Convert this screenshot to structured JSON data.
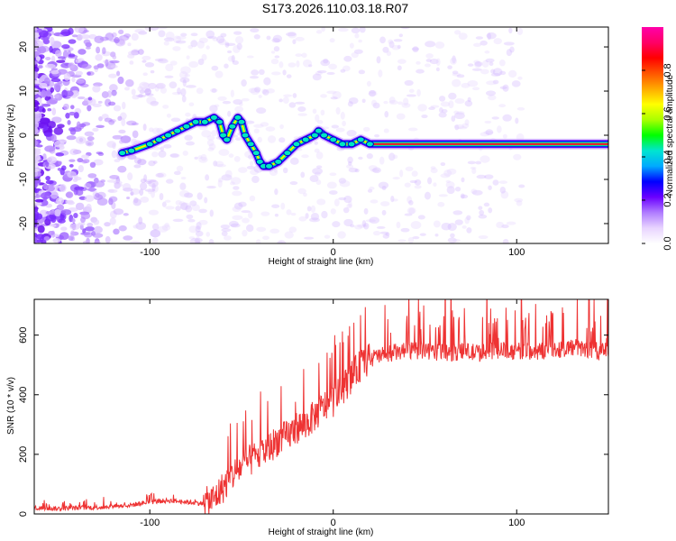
{
  "title": "S173.2026.110.03.18.R07",
  "chart_data": [
    {
      "type": "heatmap",
      "name": "spectrogram",
      "xlabel": "Height of straight line (km)",
      "ylabel": "Frequency (Hz)",
      "xlim": [
        -163,
        150
      ],
      "ylim": [
        -24.5,
        24.5
      ],
      "x_ticks": [
        -100,
        0,
        100
      ],
      "x_tick_labels": [
        "-100",
        "0",
        "100"
      ],
      "y_ticks": [
        -20,
        -10,
        0,
        10,
        20
      ],
      "y_tick_labels": [
        "-20",
        "-10",
        "0",
        "10",
        "20"
      ],
      "colorbar": {
        "label": "Normalized spectral amplitude",
        "range": [
          0,
          1
        ],
        "ticks": [
          0.0,
          0.2,
          0.4,
          0.6,
          0.8
        ],
        "tick_labels": [
          "0.0",
          "0.2",
          "0.4",
          "0.6",
          "0.8"
        ],
        "colors": [
          "#ffffff",
          "#e8d4ff",
          "#b07cff",
          "#6a00ff",
          "#0000ff",
          "#00aaff",
          "#00e5d0",
          "#00ff00",
          "#aaff00",
          "#ffff00",
          "#ffaa00",
          "#ff5500",
          "#ff0000",
          "#ff0066",
          "#ff00aa"
        ]
      },
      "ridge_x": [
        -115,
        -110,
        -100,
        -95,
        -90,
        -85,
        -80,
        -75,
        -70,
        -65,
        -62,
        -60,
        -58,
        -55,
        -52,
        -50,
        -48,
        -45,
        -42,
        -40,
        -38,
        -35,
        -30,
        -25,
        -20,
        -15,
        -10,
        -8,
        -5,
        0,
        5,
        10,
        15,
        20,
        40,
        60,
        80,
        100,
        120,
        150
      ],
      "ridge_y": [
        -4,
        -3.5,
        -2,
        -1,
        0,
        1,
        2,
        3,
        3,
        4,
        3,
        0,
        -1,
        2,
        4,
        3,
        0,
        -2,
        -4,
        -6,
        -7,
        -7,
        -6,
        -4,
        -2,
        -1,
        0,
        1,
        0,
        -1,
        -2,
        -2,
        -1,
        -2,
        -2,
        -2,
        -2,
        -2,
        -2,
        -2
      ]
    },
    {
      "type": "line",
      "name": "snr",
      "xlabel": "Height of straight line (km)",
      "ylabel": "SNR (10 * v/v)",
      "xlim": [
        -163,
        150
      ],
      "ylim": [
        0,
        720
      ],
      "x_ticks": [
        -100,
        0,
        100
      ],
      "x_tick_labels": [
        "-100",
        "0",
        "100"
      ],
      "y_ticks": [
        0,
        200,
        400,
        600
      ],
      "y_tick_labels": [
        "0",
        "200",
        "400",
        "600"
      ],
      "color": "#ee3333",
      "series": [
        {
          "name": "SNR",
          "x": [
            -163,
            -150,
            -140,
            -130,
            -120,
            -110,
            -100,
            -90,
            -80,
            -70,
            -65,
            -60,
            -55,
            -50,
            -45,
            -40,
            -35,
            -30,
            -25,
            -20,
            -15,
            -10,
            -5,
            0,
            5,
            10,
            15,
            20,
            25,
            30,
            40,
            50,
            60,
            70,
            80,
            90,
            100,
            110,
            120,
            130,
            140,
            150
          ],
          "values": [
            20,
            18,
            20,
            22,
            25,
            30,
            40,
            45,
            40,
            35,
            50,
            90,
            130,
            160,
            180,
            200,
            220,
            250,
            260,
            290,
            300,
            330,
            360,
            380,
            420,
            460,
            500,
            520,
            530,
            540,
            545,
            550,
            540,
            545,
            540,
            550,
            545,
            545,
            550,
            560,
            550,
            545
          ]
        }
      ]
    }
  ]
}
